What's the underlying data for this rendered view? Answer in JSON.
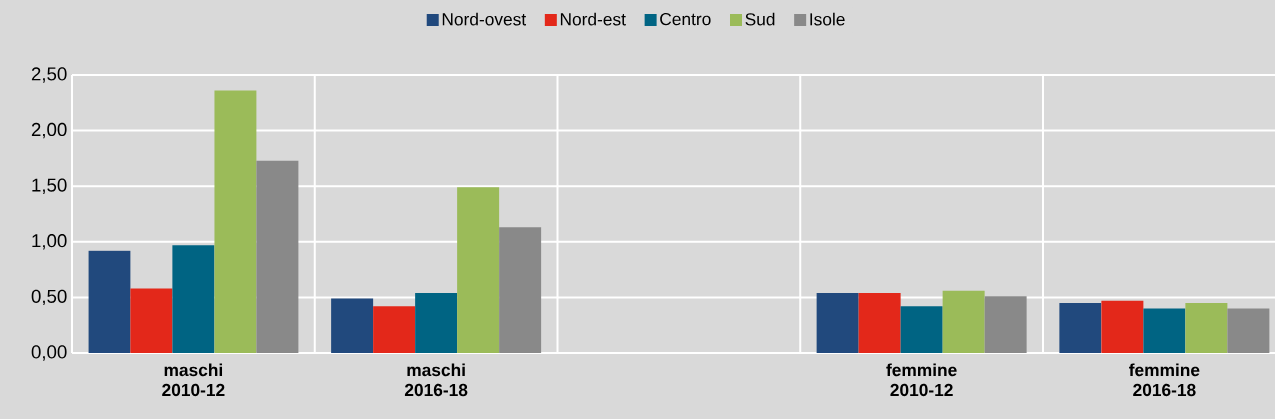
{
  "chart_data": {
    "type": "bar",
    "categories": [
      "maschi 2010-12",
      "maschi 2016-18",
      null,
      "femmine 2010-12",
      "femmine 2016-18"
    ],
    "series": [
      {
        "name": "Nord-ovest",
        "color": "#21497d",
        "values": [
          0.92,
          0.49,
          null,
          0.54,
          0.45
        ]
      },
      {
        "name": "Nord-est",
        "color": "#e3281a",
        "values": [
          0.58,
          0.42,
          null,
          0.54,
          0.47
        ]
      },
      {
        "name": "Centro",
        "color": "#006483",
        "values": [
          0.97,
          0.54,
          null,
          0.42,
          0.4
        ]
      },
      {
        "name": "Sud",
        "color": "#9bbb59",
        "values": [
          2.36,
          1.49,
          null,
          0.56,
          0.45
        ]
      },
      {
        "name": "Isole",
        "color": "#898989",
        "values": [
          1.73,
          1.13,
          null,
          0.51,
          0.4
        ]
      }
    ],
    "ylim": [
      0,
      2.5
    ],
    "yticks": [
      {
        "value": 0,
        "label": "0,00"
      },
      {
        "value": 0.5,
        "label": "0,50"
      },
      {
        "value": 1,
        "label": "1,00"
      },
      {
        "value": 1.5,
        "label": "1,50"
      },
      {
        "value": 2,
        "label": "2,00"
      },
      {
        "value": 2.5,
        "label": "2,50"
      }
    ],
    "grid": true,
    "legend": "top"
  }
}
